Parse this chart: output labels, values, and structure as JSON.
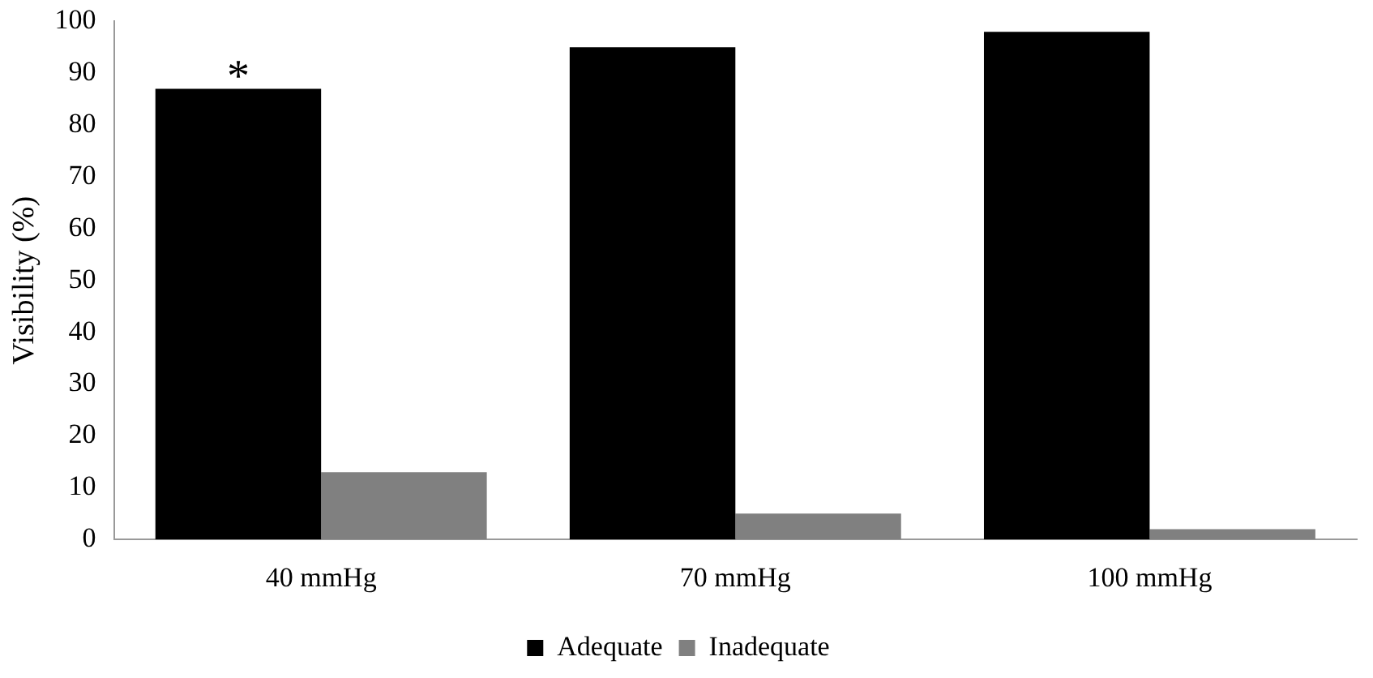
{
  "chart_data": {
    "type": "bar",
    "ylabel": "Visibility (%)",
    "categories": [
      "40 mmHg",
      "70 mmHg",
      "100 mmHg"
    ],
    "series": [
      {
        "name": "Adequate",
        "color": "#000000",
        "values": [
          87,
          95,
          98
        ]
      },
      {
        "name": "Inadequate",
        "color": "#808080",
        "values": [
          13,
          5,
          2
        ]
      }
    ],
    "ylim": [
      0,
      100
    ],
    "yticks": [
      0,
      10,
      20,
      30,
      40,
      50,
      60,
      70,
      80,
      90,
      100
    ],
    "grid": false,
    "legend": "bottom",
    "annotations": [
      {
        "text": "*",
        "x": "40 mmHg",
        "y": 87
      }
    ]
  }
}
